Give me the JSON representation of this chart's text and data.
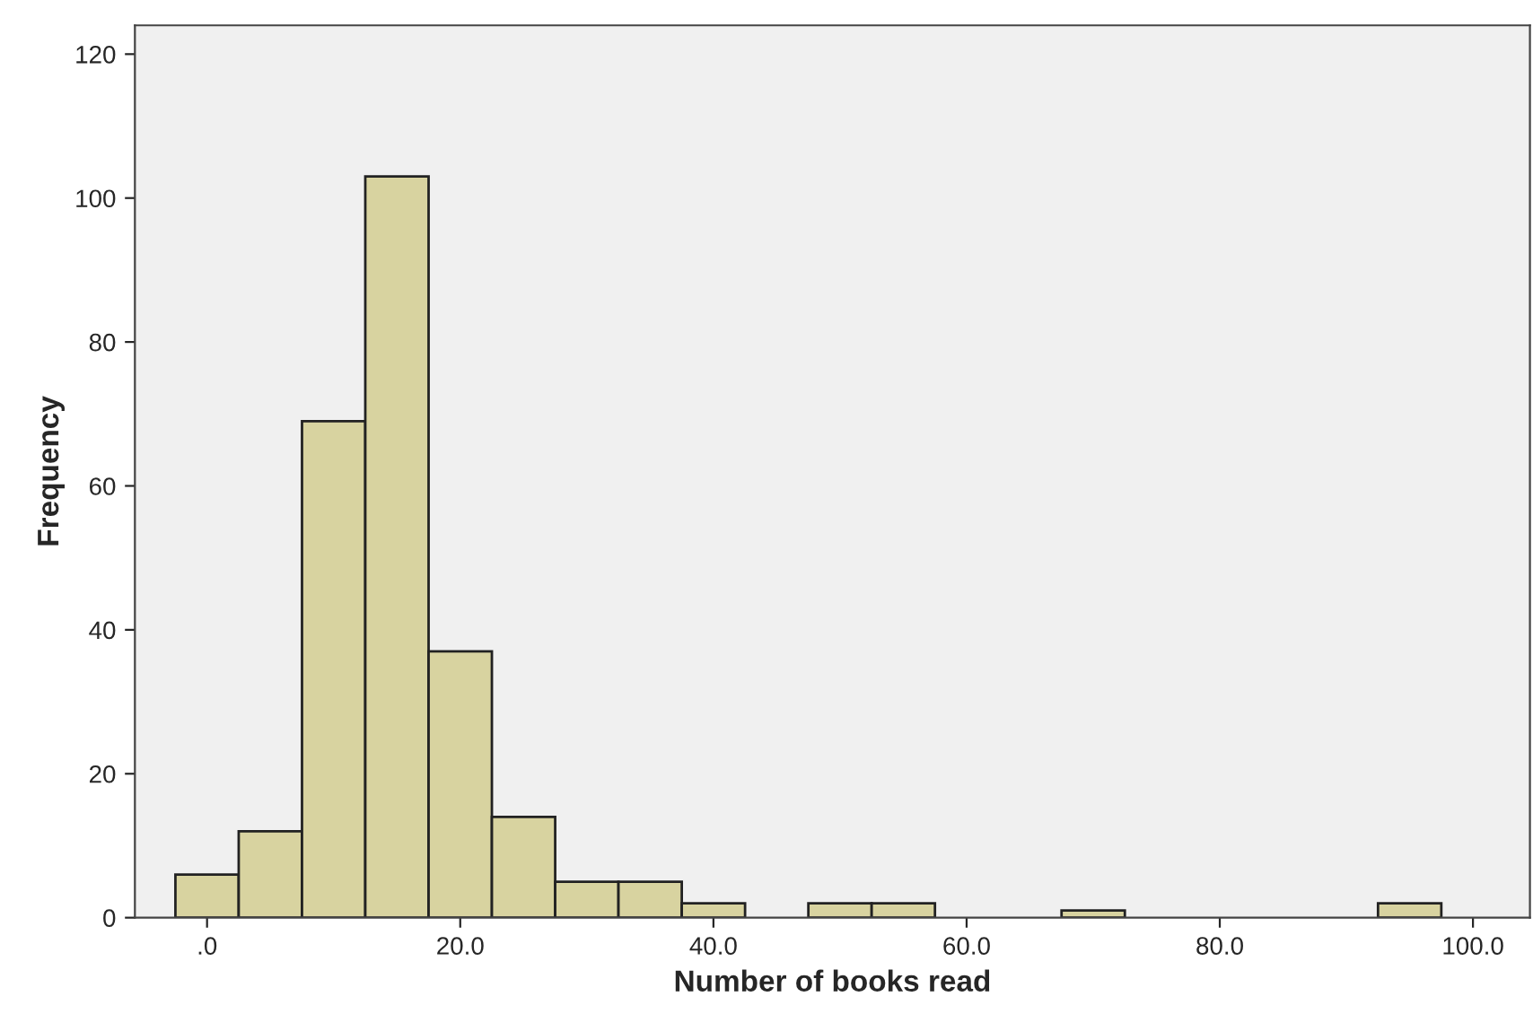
{
  "chart_data": {
    "type": "histogram",
    "xlabel": "Number of books read",
    "ylabel": "Frequency",
    "bins": [
      -2.5,
      2.5,
      7.5,
      12.5,
      17.5,
      22.5,
      27.5,
      32.5,
      37.5,
      42.5,
      47.5,
      52.5,
      57.5,
      62.5,
      67.5,
      72.5,
      77.5,
      82.5,
      87.5,
      92.5,
      97.5
    ],
    "values": [
      6,
      12,
      69,
      103,
      37,
      14,
      5,
      5,
      2,
      0,
      2,
      2,
      0,
      0,
      1,
      0,
      0,
      0,
      0,
      2
    ],
    "color": "#d8d3a0",
    "xlim": [
      -5.7,
      104.5
    ],
    "xticks": [
      {
        "value": 0,
        "label": ".0"
      },
      {
        "value": 20,
        "label": "20.0"
      },
      {
        "value": 40,
        "label": "40.0"
      },
      {
        "value": 60,
        "label": "60.0"
      },
      {
        "value": 80,
        "label": "80.0"
      },
      {
        "value": 100,
        "label": "100.0"
      }
    ],
    "ylim": [
      0,
      124
    ],
    "yticks": [
      0,
      20,
      40,
      60,
      80,
      100,
      120
    ]
  }
}
